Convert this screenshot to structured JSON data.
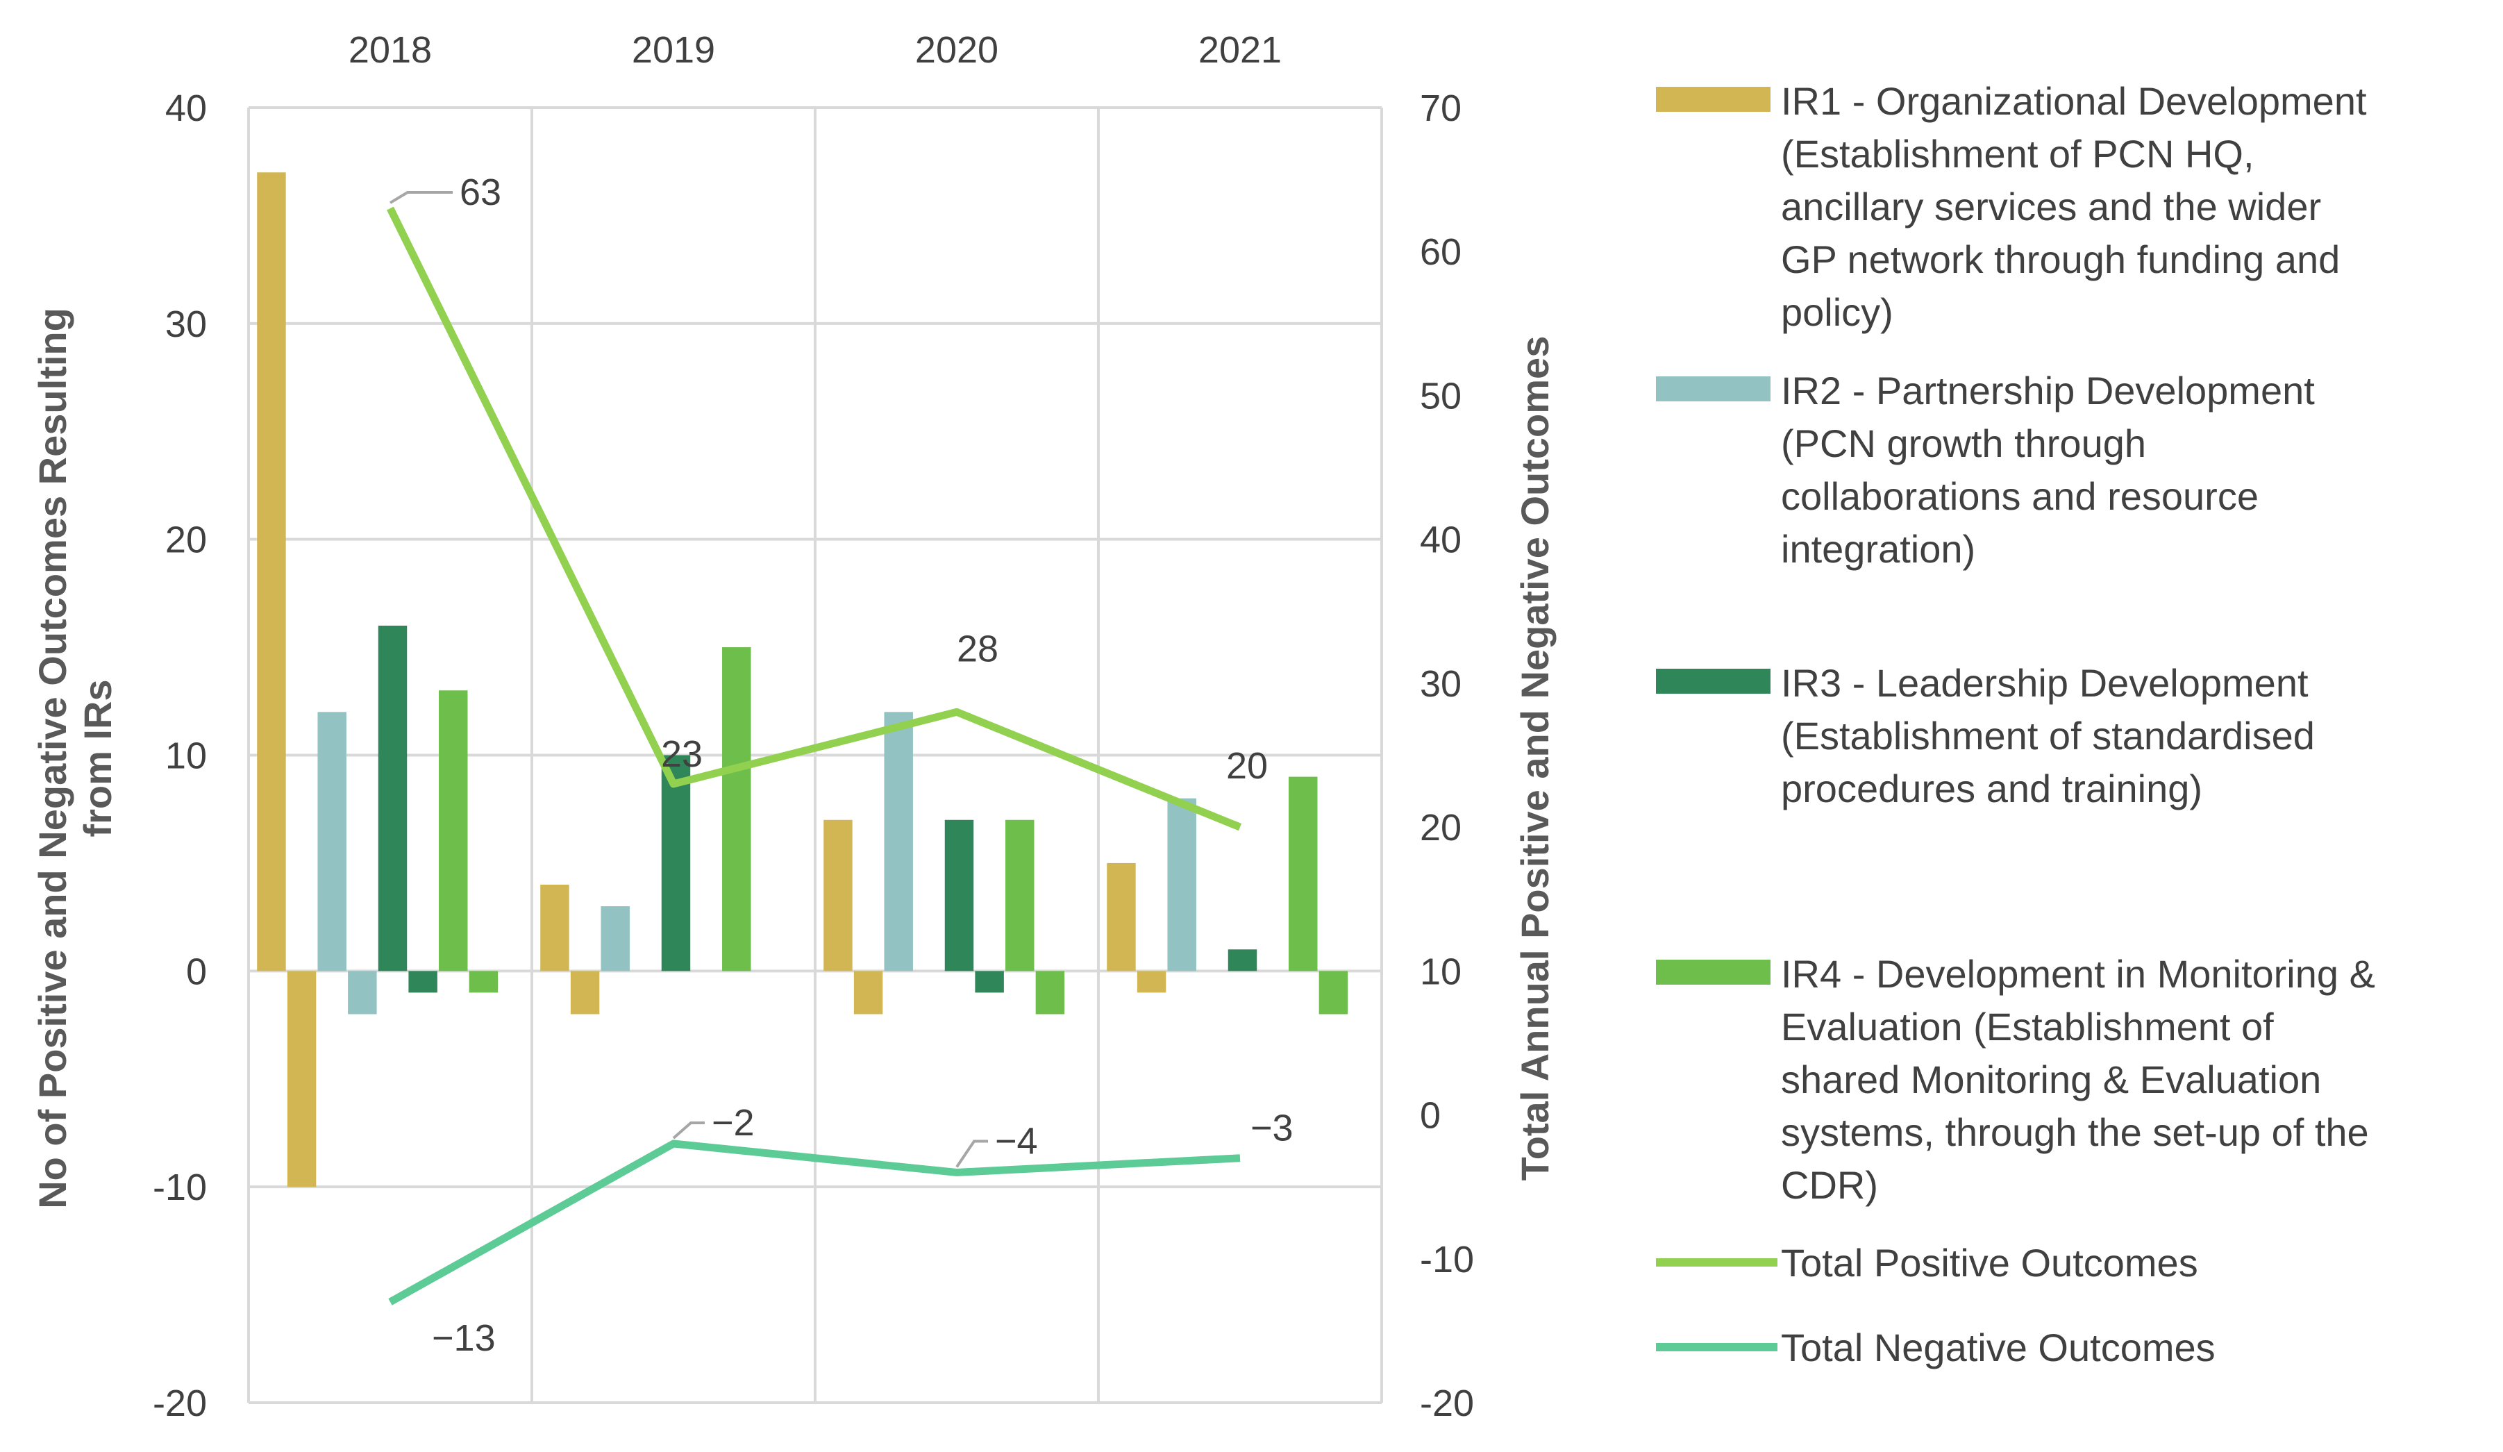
{
  "chart_data": {
    "type": "bar",
    "categories": [
      "2018",
      "2019",
      "2020",
      "2021"
    ],
    "left_axis": {
      "label_line1": "No of Positive and Negative Outcomes Resulting",
      "label_line2": "from IRs",
      "ylim": [
        -20,
        40
      ],
      "ticks": [
        "-20",
        "-10",
        "0",
        "10",
        "20",
        "30",
        "40"
      ]
    },
    "right_axis": {
      "label": "Total Annual Positive and Negative Outcomes",
      "ylim": [
        -20,
        70
      ],
      "ticks": [
        "-20",
        "-10",
        "0",
        "10",
        "20",
        "30",
        "40",
        "50",
        "60",
        "70"
      ]
    },
    "series": [
      {
        "name": "IR1",
        "color": "#D2B653",
        "legend": [
          "IR1 - Organizational Development",
          "(Establishment of PCN HQ,",
          "ancillary services and the wider",
          "GP network through funding and",
          "policy)"
        ],
        "positive": [
          37,
          4,
          7,
          5
        ],
        "negative": [
          -10,
          -2,
          -2,
          -1
        ]
      },
      {
        "name": "IR2",
        "color": "#92C3C2",
        "legend": [
          "IR2 - Partnership Development",
          "(PCN growth through",
          "collaborations and resource",
          "integration)"
        ],
        "positive": [
          12,
          3,
          12,
          8
        ],
        "negative": [
          -2,
          0,
          0,
          0
        ]
      },
      {
        "name": "IR3",
        "color": "#2E8659",
        "legend": [
          "IR3 - Leadership Development",
          "(Establishment of standardised",
          "procedures and training)"
        ],
        "positive": [
          16,
          10,
          7,
          1
        ],
        "negative": [
          -1,
          0,
          -1,
          0
        ]
      },
      {
        "name": "IR4",
        "color": "#6DBE4B",
        "legend": [
          "IR4 - Development in Monitoring &",
          "Evaluation (Establishment of",
          "shared Monitoring & Evaluation",
          "systems, through the set-up of the",
          "CDR)"
        ],
        "positive": [
          13,
          15,
          7,
          9
        ],
        "negative": [
          -1,
          0,
          -2,
          -2
        ]
      }
    ],
    "lines": [
      {
        "name": "Total Positive Outcomes",
        "color": "#92D050",
        "values": [
          63,
          23,
          28,
          20
        ],
        "labels": [
          "63",
          "23",
          "28",
          "20"
        ]
      },
      {
        "name": "Total Negative Outcomes",
        "color": "#5DCB96",
        "values": [
          -13,
          -2,
          -4,
          -3
        ],
        "labels": [
          "−13",
          "−2",
          "−4",
          "−3"
        ]
      }
    ]
  }
}
